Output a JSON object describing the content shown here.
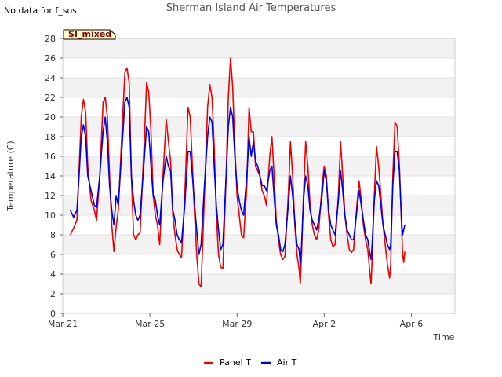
{
  "header": {
    "no_data_note": "No data for f_sos",
    "title": "Sherman Island Air Temperatures"
  },
  "site_badge": "SI_mixed",
  "chart_data": {
    "type": "line",
    "title": "Sherman Island Air Temperatures",
    "xlabel": "Time",
    "ylabel": "Temperature (C)",
    "ylim": [
      0,
      28
    ],
    "y_ticks": [
      0,
      2,
      4,
      6,
      8,
      10,
      12,
      14,
      16,
      18,
      20,
      22,
      24,
      26,
      28
    ],
    "x_range_days": [
      0,
      18
    ],
    "x_ticks": [
      {
        "day": 0,
        "label": "Mar 21"
      },
      {
        "day": 4,
        "label": "Mar 25"
      },
      {
        "day": 8,
        "label": "Mar 29"
      },
      {
        "day": 12,
        "label": "Apr 2"
      },
      {
        "day": 16,
        "label": "Apr 6"
      }
    ],
    "grid": "horizontal bands",
    "legend_position": "bottom-center",
    "series": [
      {
        "name": "Panel T",
        "color": "#ee0000",
        "points": [
          [
            0.35,
            8.0
          ],
          [
            0.5,
            8.7
          ],
          [
            0.65,
            9.5
          ],
          [
            0.75,
            14.5
          ],
          [
            0.85,
            20.0
          ],
          [
            0.95,
            21.8
          ],
          [
            1.05,
            20.5
          ],
          [
            1.15,
            15.0
          ],
          [
            1.3,
            11.5
          ],
          [
            1.45,
            10.5
          ],
          [
            1.55,
            9.5
          ],
          [
            1.7,
            14.0
          ],
          [
            1.85,
            21.5
          ],
          [
            1.95,
            22.0
          ],
          [
            2.05,
            20.0
          ],
          [
            2.15,
            14.0
          ],
          [
            2.25,
            9.0
          ],
          [
            2.35,
            6.3
          ],
          [
            2.45,
            8.8
          ],
          [
            2.55,
            10.5
          ],
          [
            2.75,
            20.0
          ],
          [
            2.85,
            24.5
          ],
          [
            2.95,
            25.0
          ],
          [
            3.05,
            23.5
          ],
          [
            3.15,
            14.0
          ],
          [
            3.25,
            8.0
          ],
          [
            3.35,
            7.5
          ],
          [
            3.45,
            8.0
          ],
          [
            3.55,
            8.2
          ],
          [
            3.75,
            18.0
          ],
          [
            3.85,
            23.5
          ],
          [
            3.95,
            22.5
          ],
          [
            4.05,
            18.5
          ],
          [
            4.15,
            12.0
          ],
          [
            4.25,
            10.0
          ],
          [
            4.35,
            9.0
          ],
          [
            4.45,
            7.0
          ],
          [
            4.6,
            14.0
          ],
          [
            4.75,
            19.8
          ],
          [
            4.85,
            17.5
          ],
          [
            4.95,
            15.5
          ],
          [
            5.05,
            10.0
          ],
          [
            5.15,
            8.0
          ],
          [
            5.25,
            6.5
          ],
          [
            5.35,
            6.0
          ],
          [
            5.45,
            5.7
          ],
          [
            5.6,
            12.0
          ],
          [
            5.75,
            21.0
          ],
          [
            5.85,
            20.0
          ],
          [
            5.95,
            15.0
          ],
          [
            6.05,
            10.0
          ],
          [
            6.15,
            6.0
          ],
          [
            6.25,
            3.0
          ],
          [
            6.35,
            2.7
          ],
          [
            6.5,
            12.0
          ],
          [
            6.65,
            21.0
          ],
          [
            6.75,
            23.3
          ],
          [
            6.85,
            22.0
          ],
          [
            6.95,
            17.0
          ],
          [
            7.05,
            10.0
          ],
          [
            7.15,
            6.0
          ],
          [
            7.25,
            4.7
          ],
          [
            7.35,
            4.6
          ],
          [
            7.5,
            14.0
          ],
          [
            7.6,
            22.0
          ],
          [
            7.7,
            26.0
          ],
          [
            7.8,
            23.0
          ],
          [
            7.9,
            17.0
          ],
          [
            8.0,
            12.0
          ],
          [
            8.1,
            10.0
          ],
          [
            8.2,
            8.0
          ],
          [
            8.3,
            7.7
          ],
          [
            8.45,
            13.0
          ],
          [
            8.55,
            21.0
          ],
          [
            8.65,
            18.5
          ],
          [
            8.75,
            18.5
          ],
          [
            8.85,
            15.0
          ],
          [
            8.95,
            14.5
          ],
          [
            9.05,
            14.0
          ],
          [
            9.15,
            12.5
          ],
          [
            9.25,
            12.0
          ],
          [
            9.35,
            11.0
          ],
          [
            9.5,
            16.0
          ],
          [
            9.6,
            18.0
          ],
          [
            9.7,
            14.0
          ],
          [
            9.8,
            9.5
          ],
          [
            9.9,
            7.5
          ],
          [
            10.0,
            6.0
          ],
          [
            10.1,
            5.5
          ],
          [
            10.2,
            5.8
          ],
          [
            10.35,
            12.0
          ],
          [
            10.45,
            17.5
          ],
          [
            10.55,
            14.0
          ],
          [
            10.65,
            9.0
          ],
          [
            10.75,
            6.0
          ],
          [
            10.85,
            4.5
          ],
          [
            10.9,
            3.0
          ],
          [
            10.95,
            5.5
          ],
          [
            11.05,
            12.0
          ],
          [
            11.15,
            17.5
          ],
          [
            11.25,
            15.0
          ],
          [
            11.35,
            11.0
          ],
          [
            11.45,
            9.0
          ],
          [
            11.55,
            8.0
          ],
          [
            11.65,
            7.5
          ],
          [
            11.75,
            8.5
          ],
          [
            11.9,
            13.0
          ],
          [
            12.0,
            15.0
          ],
          [
            12.1,
            14.0
          ],
          [
            12.2,
            10.0
          ],
          [
            12.3,
            7.5
          ],
          [
            12.4,
            6.8
          ],
          [
            12.5,
            7.0
          ],
          [
            12.65,
            12.0
          ],
          [
            12.75,
            17.5
          ],
          [
            12.85,
            14.0
          ],
          [
            12.95,
            10.0
          ],
          [
            13.05,
            8.0
          ],
          [
            13.15,
            6.5
          ],
          [
            13.25,
            6.2
          ],
          [
            13.35,
            6.5
          ],
          [
            13.5,
            11.0
          ],
          [
            13.6,
            13.5
          ],
          [
            13.7,
            11.5
          ],
          [
            13.8,
            9.0
          ],
          [
            13.9,
            7.5
          ],
          [
            14.0,
            6.5
          ],
          [
            14.1,
            4.0
          ],
          [
            14.15,
            3.0
          ],
          [
            14.2,
            5.5
          ],
          [
            14.3,
            12.0
          ],
          [
            14.4,
            17.0
          ],
          [
            14.5,
            15.0
          ],
          [
            14.6,
            12.0
          ],
          [
            14.7,
            9.0
          ],
          [
            14.8,
            7.0
          ],
          [
            14.9,
            5.0
          ],
          [
            15.0,
            3.6
          ],
          [
            15.05,
            5.0
          ],
          [
            15.15,
            14.0
          ],
          [
            15.25,
            19.5
          ],
          [
            15.35,
            19.0
          ],
          [
            15.45,
            15.0
          ],
          [
            15.55,
            9.0
          ],
          [
            15.6,
            6.0
          ],
          [
            15.65,
            5.2
          ],
          [
            15.7,
            6.3
          ]
        ]
      },
      {
        "name": "Air T",
        "color": "#0000dd",
        "points": [
          [
            0.35,
            10.5
          ],
          [
            0.5,
            9.8
          ],
          [
            0.65,
            10.5
          ],
          [
            0.75,
            14.0
          ],
          [
            0.85,
            18.0
          ],
          [
            0.95,
            19.2
          ],
          [
            1.05,
            18.0
          ],
          [
            1.15,
            14.0
          ],
          [
            1.3,
            12.5
          ],
          [
            1.45,
            11.0
          ],
          [
            1.55,
            10.8
          ],
          [
            1.7,
            14.0
          ],
          [
            1.85,
            18.5
          ],
          [
            1.95,
            20.0
          ],
          [
            2.05,
            17.5
          ],
          [
            2.15,
            13.0
          ],
          [
            2.25,
            10.5
          ],
          [
            2.35,
            9.0
          ],
          [
            2.45,
            12.0
          ],
          [
            2.55,
            11.0
          ],
          [
            2.75,
            18.0
          ],
          [
            2.85,
            21.5
          ],
          [
            2.95,
            22.0
          ],
          [
            3.05,
            21.0
          ],
          [
            3.15,
            14.0
          ],
          [
            3.25,
            11.5
          ],
          [
            3.35,
            10.0
          ],
          [
            3.45,
            9.5
          ],
          [
            3.55,
            10.0
          ],
          [
            3.75,
            16.0
          ],
          [
            3.85,
            19.0
          ],
          [
            3.95,
            18.5
          ],
          [
            4.05,
            15.0
          ],
          [
            4.15,
            12.0
          ],
          [
            4.25,
            11.5
          ],
          [
            4.35,
            10.0
          ],
          [
            4.45,
            9.0
          ],
          [
            4.6,
            13.5
          ],
          [
            4.75,
            16.0
          ],
          [
            4.85,
            15.0
          ],
          [
            4.95,
            14.5
          ],
          [
            5.05,
            10.5
          ],
          [
            5.15,
            9.5
          ],
          [
            5.25,
            8.0
          ],
          [
            5.35,
            7.5
          ],
          [
            5.45,
            7.2
          ],
          [
            5.6,
            11.0
          ],
          [
            5.75,
            16.5
          ],
          [
            5.85,
            16.5
          ],
          [
            5.95,
            14.0
          ],
          [
            6.05,
            11.0
          ],
          [
            6.15,
            8.5
          ],
          [
            6.25,
            6.0
          ],
          [
            6.35,
            7.0
          ],
          [
            6.5,
            13.0
          ],
          [
            6.65,
            18.0
          ],
          [
            6.75,
            20.0
          ],
          [
            6.85,
            19.5
          ],
          [
            6.95,
            15.0
          ],
          [
            7.05,
            11.0
          ],
          [
            7.15,
            8.5
          ],
          [
            7.25,
            6.5
          ],
          [
            7.35,
            7.0
          ],
          [
            7.5,
            14.0
          ],
          [
            7.6,
            19.0
          ],
          [
            7.7,
            21.0
          ],
          [
            7.8,
            20.0
          ],
          [
            7.9,
            16.0
          ],
          [
            8.0,
            13.0
          ],
          [
            8.1,
            11.5
          ],
          [
            8.2,
            10.5
          ],
          [
            8.3,
            10.0
          ],
          [
            8.45,
            14.0
          ],
          [
            8.55,
            18.0
          ],
          [
            8.65,
            16.0
          ],
          [
            8.75,
            17.5
          ],
          [
            8.85,
            15.5
          ],
          [
            8.95,
            15.0
          ],
          [
            9.05,
            14.0
          ],
          [
            9.15,
            13.0
          ],
          [
            9.25,
            13.0
          ],
          [
            9.35,
            12.5
          ],
          [
            9.5,
            14.5
          ],
          [
            9.6,
            15.0
          ],
          [
            9.7,
            12.0
          ],
          [
            9.8,
            9.0
          ],
          [
            9.9,
            8.0
          ],
          [
            10.0,
            6.5
          ],
          [
            10.1,
            6.3
          ],
          [
            10.2,
            7.0
          ],
          [
            10.35,
            11.0
          ],
          [
            10.45,
            14.0
          ],
          [
            10.55,
            12.0
          ],
          [
            10.65,
            9.5
          ],
          [
            10.75,
            7.0
          ],
          [
            10.85,
            6.5
          ],
          [
            10.9,
            5.0
          ],
          [
            10.95,
            6.5
          ],
          [
            11.05,
            11.5
          ],
          [
            11.15,
            14.0
          ],
          [
            11.25,
            13.0
          ],
          [
            11.35,
            10.5
          ],
          [
            11.45,
            9.5
          ],
          [
            11.55,
            9.0
          ],
          [
            11.65,
            8.5
          ],
          [
            11.75,
            9.5
          ],
          [
            11.9,
            12.0
          ],
          [
            12.0,
            14.5
          ],
          [
            12.1,
            13.5
          ],
          [
            12.2,
            10.5
          ],
          [
            12.3,
            9.0
          ],
          [
            12.4,
            8.5
          ],
          [
            12.5,
            8.0
          ],
          [
            12.65,
            11.5
          ],
          [
            12.75,
            14.5
          ],
          [
            12.85,
            12.5
          ],
          [
            12.95,
            10.0
          ],
          [
            13.05,
            8.5
          ],
          [
            13.15,
            8.0
          ],
          [
            13.25,
            7.5
          ],
          [
            13.35,
            7.5
          ],
          [
            13.5,
            10.5
          ],
          [
            13.6,
            12.5
          ],
          [
            13.7,
            11.0
          ],
          [
            13.8,
            9.5
          ],
          [
            13.9,
            8.0
          ],
          [
            14.0,
            7.5
          ],
          [
            14.1,
            6.0
          ],
          [
            14.15,
            5.5
          ],
          [
            14.2,
            7.0
          ],
          [
            14.3,
            11.5
          ],
          [
            14.4,
            13.5
          ],
          [
            14.5,
            13.0
          ],
          [
            14.6,
            11.0
          ],
          [
            14.7,
            9.0
          ],
          [
            14.8,
            8.0
          ],
          [
            14.9,
            7.0
          ],
          [
            15.0,
            6.5
          ],
          [
            15.05,
            7.0
          ],
          [
            15.15,
            13.0
          ],
          [
            15.25,
            16.5
          ],
          [
            15.35,
            16.5
          ],
          [
            15.45,
            14.5
          ],
          [
            15.55,
            9.5
          ],
          [
            15.6,
            8.0
          ],
          [
            15.65,
            8.5
          ],
          [
            15.7,
            9.0
          ]
        ]
      }
    ]
  }
}
